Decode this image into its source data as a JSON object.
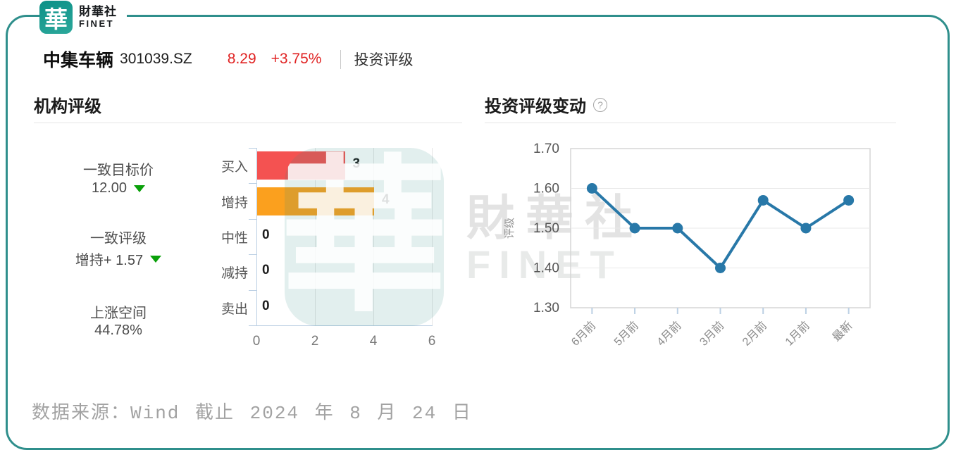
{
  "logo": {
    "square_glyph": "華",
    "brand_cn": "財華社",
    "brand_en": "FINET"
  },
  "stock_header": {
    "name": "中集车辆",
    "code": "301039.SZ",
    "price": "8.29",
    "change_pct": "+3.75%",
    "tab": "投资评级"
  },
  "institution_panel": {
    "title": "机构评级",
    "stats": [
      {
        "label": "一致目标价",
        "value": "12.00",
        "trend_icon": "down-triangle"
      },
      {
        "label": "一致评级",
        "value": "增持+  1.57",
        "trend_icon": "down-triangle"
      },
      {
        "label": "上涨空间",
        "value": "44.78%",
        "trend_icon": ""
      }
    ]
  },
  "rating_panel": {
    "title": "投资评级变动",
    "help_icon": "?"
  },
  "watermark": {
    "logo_glyph": "華",
    "text_cn": "財華社",
    "text_en": "FINET"
  },
  "footer": {
    "source_note": "数据来源：Wind 截止 2024 年 8 月 24 日"
  },
  "colors": {
    "brand_teal": "#2f8f8c",
    "price_red": "#e02222",
    "bar_buy_red": "#f45251",
    "bar_overweight_orange": "#fba01e",
    "line_blue": "#2878a8",
    "trend_green": "#0aa00a",
    "axis_blue": "#bcd0e4",
    "gridline_gray": "#e5e5e5"
  },
  "chart_data": [
    {
      "type": "bar",
      "title": "机构评级",
      "orientation": "horizontal",
      "categories": [
        "买入",
        "增持",
        "中性",
        "减持",
        "卖出"
      ],
      "values": [
        3,
        4,
        0,
        0,
        0
      ],
      "bar_colors": [
        "#f45251",
        "#fba01e",
        null,
        null,
        null
      ],
      "xlabel": "",
      "ylabel": "",
      "xlim": [
        0,
        6
      ],
      "xticks": [
        0,
        2,
        4,
        6
      ],
      "grid": true,
      "value_labels": true
    },
    {
      "type": "line",
      "title": "投资评级变动",
      "ylabel": "评级",
      "categories": [
        "6月前",
        "5月前",
        "4月前",
        "3月前",
        "2月前",
        "1月前",
        "最新"
      ],
      "values": [
        1.6,
        1.5,
        1.5,
        1.4,
        1.57,
        1.5,
        1.57
      ],
      "ylim": [
        1.3,
        1.7
      ],
      "yticks": [
        "1.30",
        "1.40",
        "1.50",
        "1.60",
        "1.70"
      ],
      "grid_values": [
        1.4,
        1.5,
        1.6
      ],
      "grid": true,
      "marker": "circle",
      "legend": "none"
    }
  ]
}
